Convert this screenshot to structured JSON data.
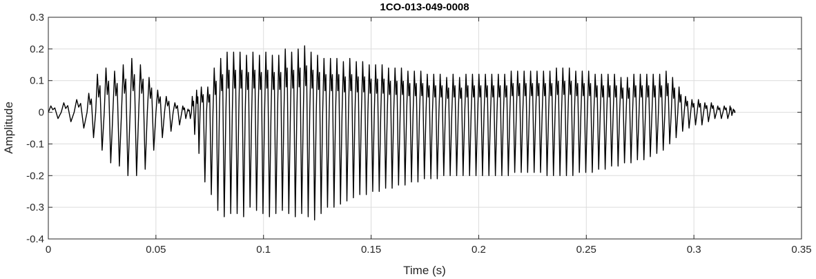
{
  "chart_data": {
    "type": "line",
    "title": "1CO-013-049-0008",
    "xlabel": "Time (s)",
    "ylabel": "Amplitude",
    "xlim": [
      0,
      0.35
    ],
    "ylim": [
      -0.4,
      0.3
    ],
    "grid": true,
    "x_ticks": [
      0,
      0.05,
      0.1,
      0.15,
      0.2,
      0.25,
      0.3,
      0.35
    ],
    "x_tick_labels": [
      "0",
      "0.05",
      "0.1",
      "0.15",
      "0.2",
      "0.25",
      "0.3",
      "0.35"
    ],
    "y_ticks": [
      -0.4,
      -0.3,
      -0.2,
      -0.1,
      0,
      0.1,
      0.2,
      0.3
    ],
    "y_tick_labels": [
      "-0.4",
      "-0.3",
      "-0.2",
      "-0.1",
      "0",
      "0.1",
      "0.2",
      "0.3"
    ],
    "series": [
      {
        "line_color": "#000000",
        "x": [
          0,
          0.006,
          0.012,
          0.018,
          0.022,
          0.026,
          0.03,
          0.034,
          0.038,
          0.042,
          0.046,
          0.05,
          0.054,
          0.058,
          0.062,
          0.0645,
          0.0665,
          0.0685,
          0.0705,
          0.0735,
          0.0765,
          0.0795,
          0.0825,
          0.0855,
          0.0885,
          0.0915,
          0.0945,
          0.0975,
          0.1005,
          0.1035,
          0.1065,
          0.1095,
          0.1125,
          0.1155,
          0.1185,
          0.1215,
          0.1245,
          0.1275,
          0.1305,
          0.1335,
          0.1365,
          0.1395,
          0.1425,
          0.1455,
          0.1485,
          0.1515,
          0.1545,
          0.1575,
          0.1605,
          0.1635,
          0.1665,
          0.1695,
          0.1725,
          0.1755,
          0.1785,
          0.1815,
          0.1845,
          0.1875,
          0.1905,
          0.1935,
          0.1965,
          0.1995,
          0.2025,
          0.2055,
          0.2085,
          0.2115,
          0.2145,
          0.2175,
          0.2205,
          0.2235,
          0.2265,
          0.2295,
          0.2325,
          0.2355,
          0.2385,
          0.2415,
          0.2445,
          0.2475,
          0.2505,
          0.2535,
          0.2565,
          0.2595,
          0.2625,
          0.2655,
          0.2685,
          0.2715,
          0.2745,
          0.2775,
          0.2805,
          0.2835,
          0.2865,
          0.2895,
          0.2925,
          0.2955,
          0.2985,
          0.3015,
          0.3045,
          0.3075,
          0.3105,
          0.3135,
          0.3165,
          0.318
        ],
        "upper": [
          0.02,
          0.03,
          0.04,
          0.06,
          0.12,
          0.14,
          0.13,
          0.15,
          0.17,
          0.15,
          0.11,
          0.07,
          0.05,
          0.03,
          0.02,
          0.01,
          0.05,
          0.07,
          0.08,
          0.08,
          0.14,
          0.17,
          0.19,
          0.19,
          0.19,
          0.18,
          0.19,
          0.18,
          0.19,
          0.18,
          0.18,
          0.2,
          0.19,
          0.2,
          0.21,
          0.19,
          0.18,
          0.17,
          0.17,
          0.17,
          0.16,
          0.17,
          0.16,
          0.16,
          0.15,
          0.15,
          0.15,
          0.14,
          0.14,
          0.14,
          0.13,
          0.13,
          0.13,
          0.12,
          0.12,
          0.12,
          0.11,
          0.12,
          0.11,
          0.12,
          0.12,
          0.12,
          0.12,
          0.12,
          0.12,
          0.12,
          0.13,
          0.13,
          0.13,
          0.13,
          0.13,
          0.13,
          0.13,
          0.14,
          0.14,
          0.14,
          0.13,
          0.13,
          0.13,
          0.12,
          0.12,
          0.12,
          0.12,
          0.11,
          0.11,
          0.12,
          0.12,
          0.12,
          0.12,
          0.12,
          0.13,
          0.11,
          0.08,
          0.05,
          0.04,
          0.04,
          0.03,
          0.03,
          0.02,
          0.02,
          0.02,
          0.01
        ],
        "lower": [
          -0.02,
          -0.03,
          -0.05,
          -0.08,
          -0.12,
          -0.16,
          -0.17,
          -0.2,
          -0.2,
          -0.18,
          -0.12,
          -0.08,
          -0.06,
          -0.04,
          -0.02,
          -0.02,
          -0.07,
          -0.13,
          -0.22,
          -0.26,
          -0.31,
          -0.33,
          -0.32,
          -0.32,
          -0.33,
          -0.3,
          -0.31,
          -0.32,
          -0.33,
          -0.32,
          -0.31,
          -0.32,
          -0.33,
          -0.32,
          -0.33,
          -0.34,
          -0.32,
          -0.3,
          -0.3,
          -0.29,
          -0.28,
          -0.27,
          -0.26,
          -0.26,
          -0.25,
          -0.25,
          -0.24,
          -0.24,
          -0.23,
          -0.23,
          -0.22,
          -0.22,
          -0.21,
          -0.21,
          -0.21,
          -0.2,
          -0.2,
          -0.2,
          -0.2,
          -0.2,
          -0.2,
          -0.2,
          -0.2,
          -0.2,
          -0.2,
          -0.2,
          -0.19,
          -0.19,
          -0.19,
          -0.19,
          -0.19,
          -0.2,
          -0.2,
          -0.2,
          -0.2,
          -0.2,
          -0.19,
          -0.19,
          -0.19,
          -0.18,
          -0.18,
          -0.17,
          -0.17,
          -0.16,
          -0.16,
          -0.15,
          -0.15,
          -0.14,
          -0.13,
          -0.12,
          -0.1,
          -0.08,
          -0.06,
          -0.05,
          -0.04,
          -0.04,
          -0.03,
          -0.02,
          -0.02,
          -0.02,
          -0.01,
          0.0
        ]
      }
    ]
  }
}
